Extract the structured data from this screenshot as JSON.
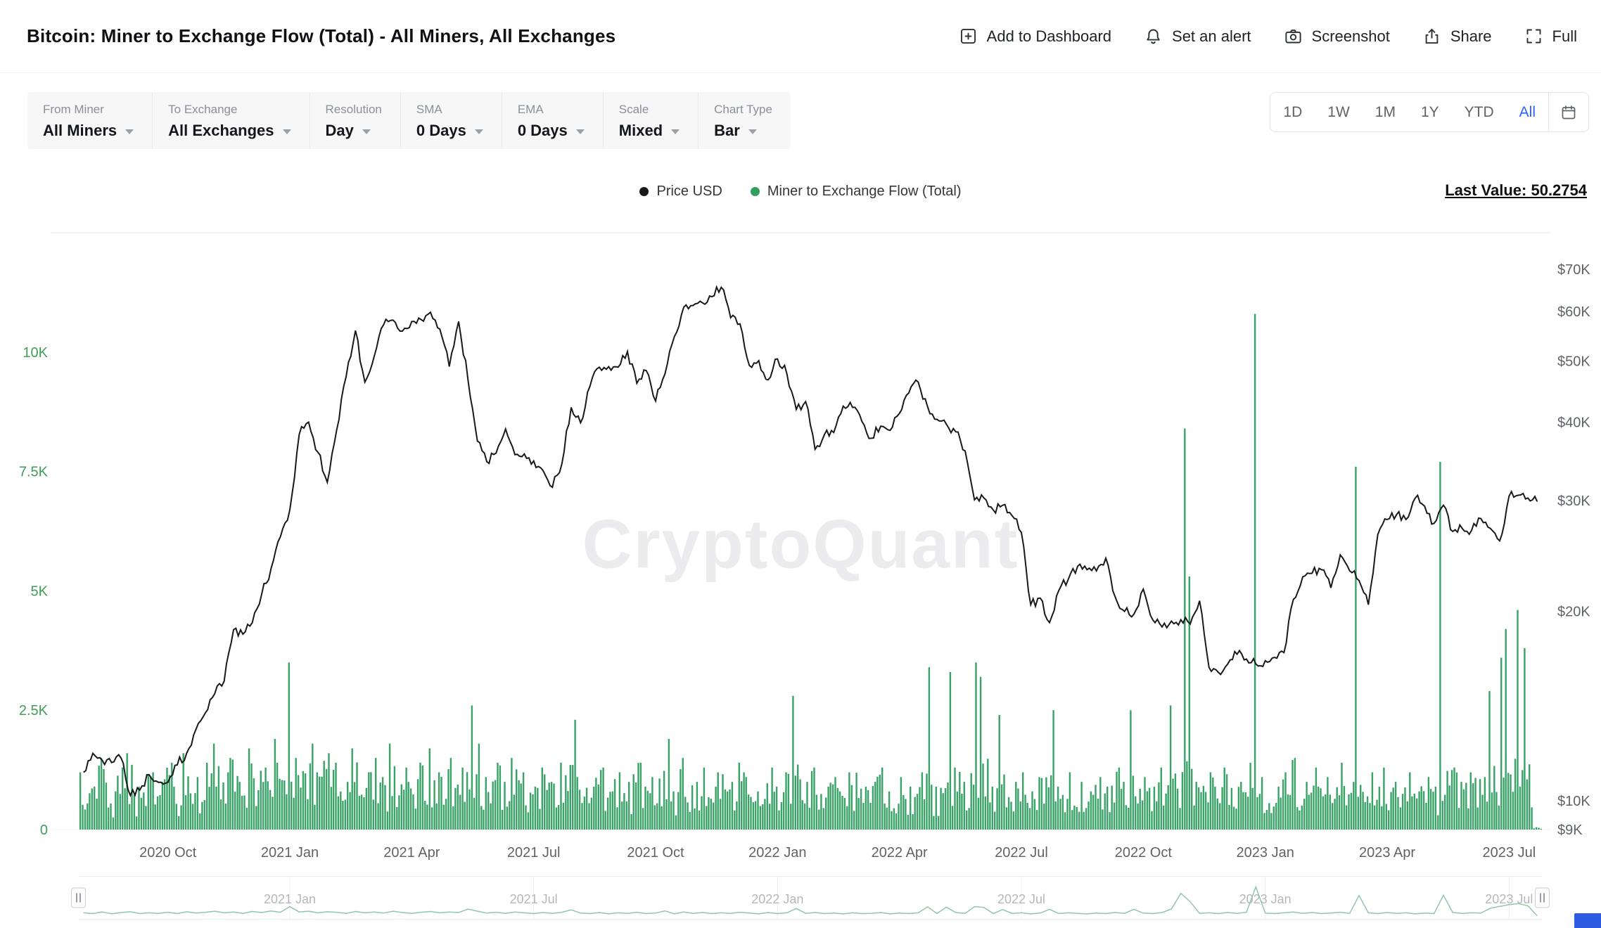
{
  "header": {
    "title": "Bitcoin: Miner to Exchange Flow (Total) - All Miners, All Exchanges",
    "actions": [
      {
        "id": "add-to-dashboard",
        "label": "Add to Dashboard",
        "icon": "dashboard-add-icon"
      },
      {
        "id": "set-alert",
        "label": "Set an alert",
        "icon": "bell-icon"
      },
      {
        "id": "screenshot",
        "label": "Screenshot",
        "icon": "camera-icon"
      },
      {
        "id": "share",
        "label": "Share",
        "icon": "share-icon"
      },
      {
        "id": "full",
        "label": "Full",
        "icon": "fullscreen-icon"
      }
    ]
  },
  "filters": [
    {
      "label": "From Miner",
      "value": "All Miners"
    },
    {
      "label": "To Exchange",
      "value": "All Exchanges"
    },
    {
      "label": "Resolution",
      "value": "Day"
    },
    {
      "label": "SMA",
      "value": "0 Days"
    },
    {
      "label": "EMA",
      "value": "0 Days"
    },
    {
      "label": "Scale",
      "value": "Mixed"
    },
    {
      "label": "Chart Type",
      "value": "Bar"
    }
  ],
  "ranges": {
    "options": [
      "1D",
      "1W",
      "1M",
      "1Y",
      "YTD",
      "All"
    ],
    "selected": "All"
  },
  "legend": [
    {
      "label": "Price USD",
      "color": "#17191c"
    },
    {
      "label": "Miner to Exchange Flow (Total)",
      "color": "#2f9e5f"
    }
  ],
  "last_value_label": "Last Value: 50.2754",
  "watermark": "CryptoQuant",
  "chart_data": {
    "type": "bar+line",
    "title": "Bitcoin: Miner to Exchange Flow (Total) - All Miners, All Exchanges",
    "x_unit": "week",
    "x_start": "2020-08",
    "x_end": "2023-07",
    "grid": "off",
    "legend_position": "top-center",
    "x_ticks": [
      {
        "index": 9,
        "label": "2020 Oct"
      },
      {
        "index": 22,
        "label": "2021 Jan"
      },
      {
        "index": 35,
        "label": "2021 Apr"
      },
      {
        "index": 48,
        "label": "2021 Jul"
      },
      {
        "index": 61,
        "label": "2021 Oct"
      },
      {
        "index": 74,
        "label": "2022 Jan"
      },
      {
        "index": 87,
        "label": "2022 Apr"
      },
      {
        "index": 100,
        "label": "2022 Jul"
      },
      {
        "index": 113,
        "label": "2022 Oct"
      },
      {
        "index": 126,
        "label": "2023 Jan"
      },
      {
        "index": 139,
        "label": "2023 Apr"
      },
      {
        "index": 152,
        "label": "2023 Jul"
      }
    ],
    "left_axis": {
      "title": "Miner to Exchange Flow (Total)",
      "color": "#3f9d58",
      "ticks": [
        "0",
        "2.5K",
        "5K",
        "7.5K",
        "10K"
      ],
      "tick_values": [
        0,
        2500,
        5000,
        7500,
        10000
      ],
      "max": 12500
    },
    "right_axis": {
      "title": "Price USD",
      "scale": "log",
      "ticks": [
        "$9K",
        "$10K",
        "$20K",
        "$30K",
        "$40K",
        "$50K",
        "$60K",
        "$70K"
      ],
      "tick_values": [
        9000,
        10000,
        20000,
        30000,
        40000,
        50000,
        60000,
        70000
      ],
      "range": [
        9000,
        80000
      ]
    },
    "series": [
      {
        "name": "Miner to Exchange Flow (Total)",
        "type": "bar",
        "axis": "left",
        "color": "#2f9e5f",
        "unit": "BTC",
        "last_value": 50.2754,
        "values": [
          1200,
          900,
          1500,
          800,
          1300,
          1600,
          900,
          1200,
          1000,
          1400,
          900,
          1600,
          1100,
          1400,
          1800,
          1200,
          1500,
          1000,
          1700,
          1300,
          1900,
          1400,
          3500,
          1500,
          1800,
          1200,
          1600,
          1400,
          1000,
          1700,
          1200,
          1500,
          1100,
          1800,
          1300,
          1000,
          1400,
          1700,
          1200,
          1500,
          1300,
          2600,
          1800,
          1100,
          1400,
          1000,
          1500,
          1200,
          900,
          1300,
          1000,
          1400,
          2300,
          1100,
          900,
          1300,
          800,
          1200,
          1000,
          1400,
          900,
          1100,
          1900,
          800,
          1500,
          1000,
          1300,
          900,
          1200,
          1000,
          1400,
          1100,
          800,
          1300,
          900,
          1200,
          2800,
          1000,
          1300,
          900,
          1100,
          800,
          1200,
          900,
          1000,
          1300,
          800,
          1100,
          900,
          1200,
          3400,
          900,
          3300,
          1300,
          1000,
          3500,
          3200,
          900,
          2400,
          1000,
          1200,
          800,
          1100,
          2500,
          900,
          1200,
          1000,
          800,
          1100,
          900,
          1300,
          1000,
          2500,
          1100,
          900,
          1300,
          2600,
          8400,
          5300,
          1000,
          1200,
          900,
          1300,
          1000,
          1400,
          10800,
          1100,
          900,
          1200,
          1500,
          1000,
          1300,
          900,
          1100,
          1400,
          1000,
          7600,
          1200,
          900,
          1300,
          1000,
          1200,
          800,
          1100,
          900,
          7700,
          1300,
          1000,
          1200,
          1100,
          2900,
          3600,
          4200,
          4600,
          3800,
          50.2754
        ]
      },
      {
        "name": "Price USD",
        "type": "line",
        "axis": "right",
        "color": "#17191c",
        "unit": "USD",
        "values": [
          11100,
          11900,
          11600,
          11500,
          11700,
          10200,
          10400,
          11000,
          10700,
          10700,
          11400,
          11900,
          13000,
          13800,
          14800,
          15500,
          18700,
          18400,
          19200,
          21300,
          23400,
          26300,
          29000,
          38200,
          40000,
          35800,
          32100,
          38900,
          47200,
          55900,
          46300,
          50900,
          57100,
          58100,
          55800,
          57800,
          58200,
          59800,
          56200,
          49000,
          57800,
          46700,
          37300,
          34600,
          35700,
          39000,
          35500,
          35600,
          34700,
          33500,
          31500,
          34300,
          42200,
          39900,
          45600,
          48900,
          49000,
          48900,
          51800,
          46100,
          48300,
          43200,
          47700,
          54700,
          60900,
          61300,
          61900,
          63300,
          65500,
          58600,
          57300,
          49200,
          50100,
          46700,
          50400,
          47700,
          41900,
          43100,
          36200,
          38200,
          38500,
          42400,
          42200,
          40100,
          37700,
          39400,
          38800,
          41300,
          44500,
          46300,
          42300,
          40400,
          39700,
          38600,
          36000,
          30100,
          30300,
          29000,
          29500,
          28400,
          26700,
          20500,
          21000,
          19200,
          21600,
          22500,
          23600,
          23300,
          23200,
          24300,
          21100,
          20000,
          19800,
          21700,
          19400,
          18900,
          19300,
          19400,
          19100,
          20800,
          16300,
          16000,
          16500,
          17100,
          16800,
          16500,
          16700,
          16900,
          17200,
          20900,
          22700,
          23000,
          23300,
          21800,
          24600,
          23200,
          22400,
          20500,
          26500,
          28000,
          28500,
          28000,
          30300,
          29400,
          27600,
          29500,
          26800,
          27100,
          26900,
          28100,
          27100,
          25900,
          30500,
          30600,
          30300,
          29900
        ]
      }
    ],
    "navigator": {
      "tick_indices": [
        22,
        48,
        74,
        100,
        126,
        152
      ],
      "tick_labels": [
        "2021 Jan",
        "2021 Jul",
        "2022 Jan",
        "2022 Jul",
        "2023 Jan",
        "2023 Jul"
      ]
    }
  }
}
